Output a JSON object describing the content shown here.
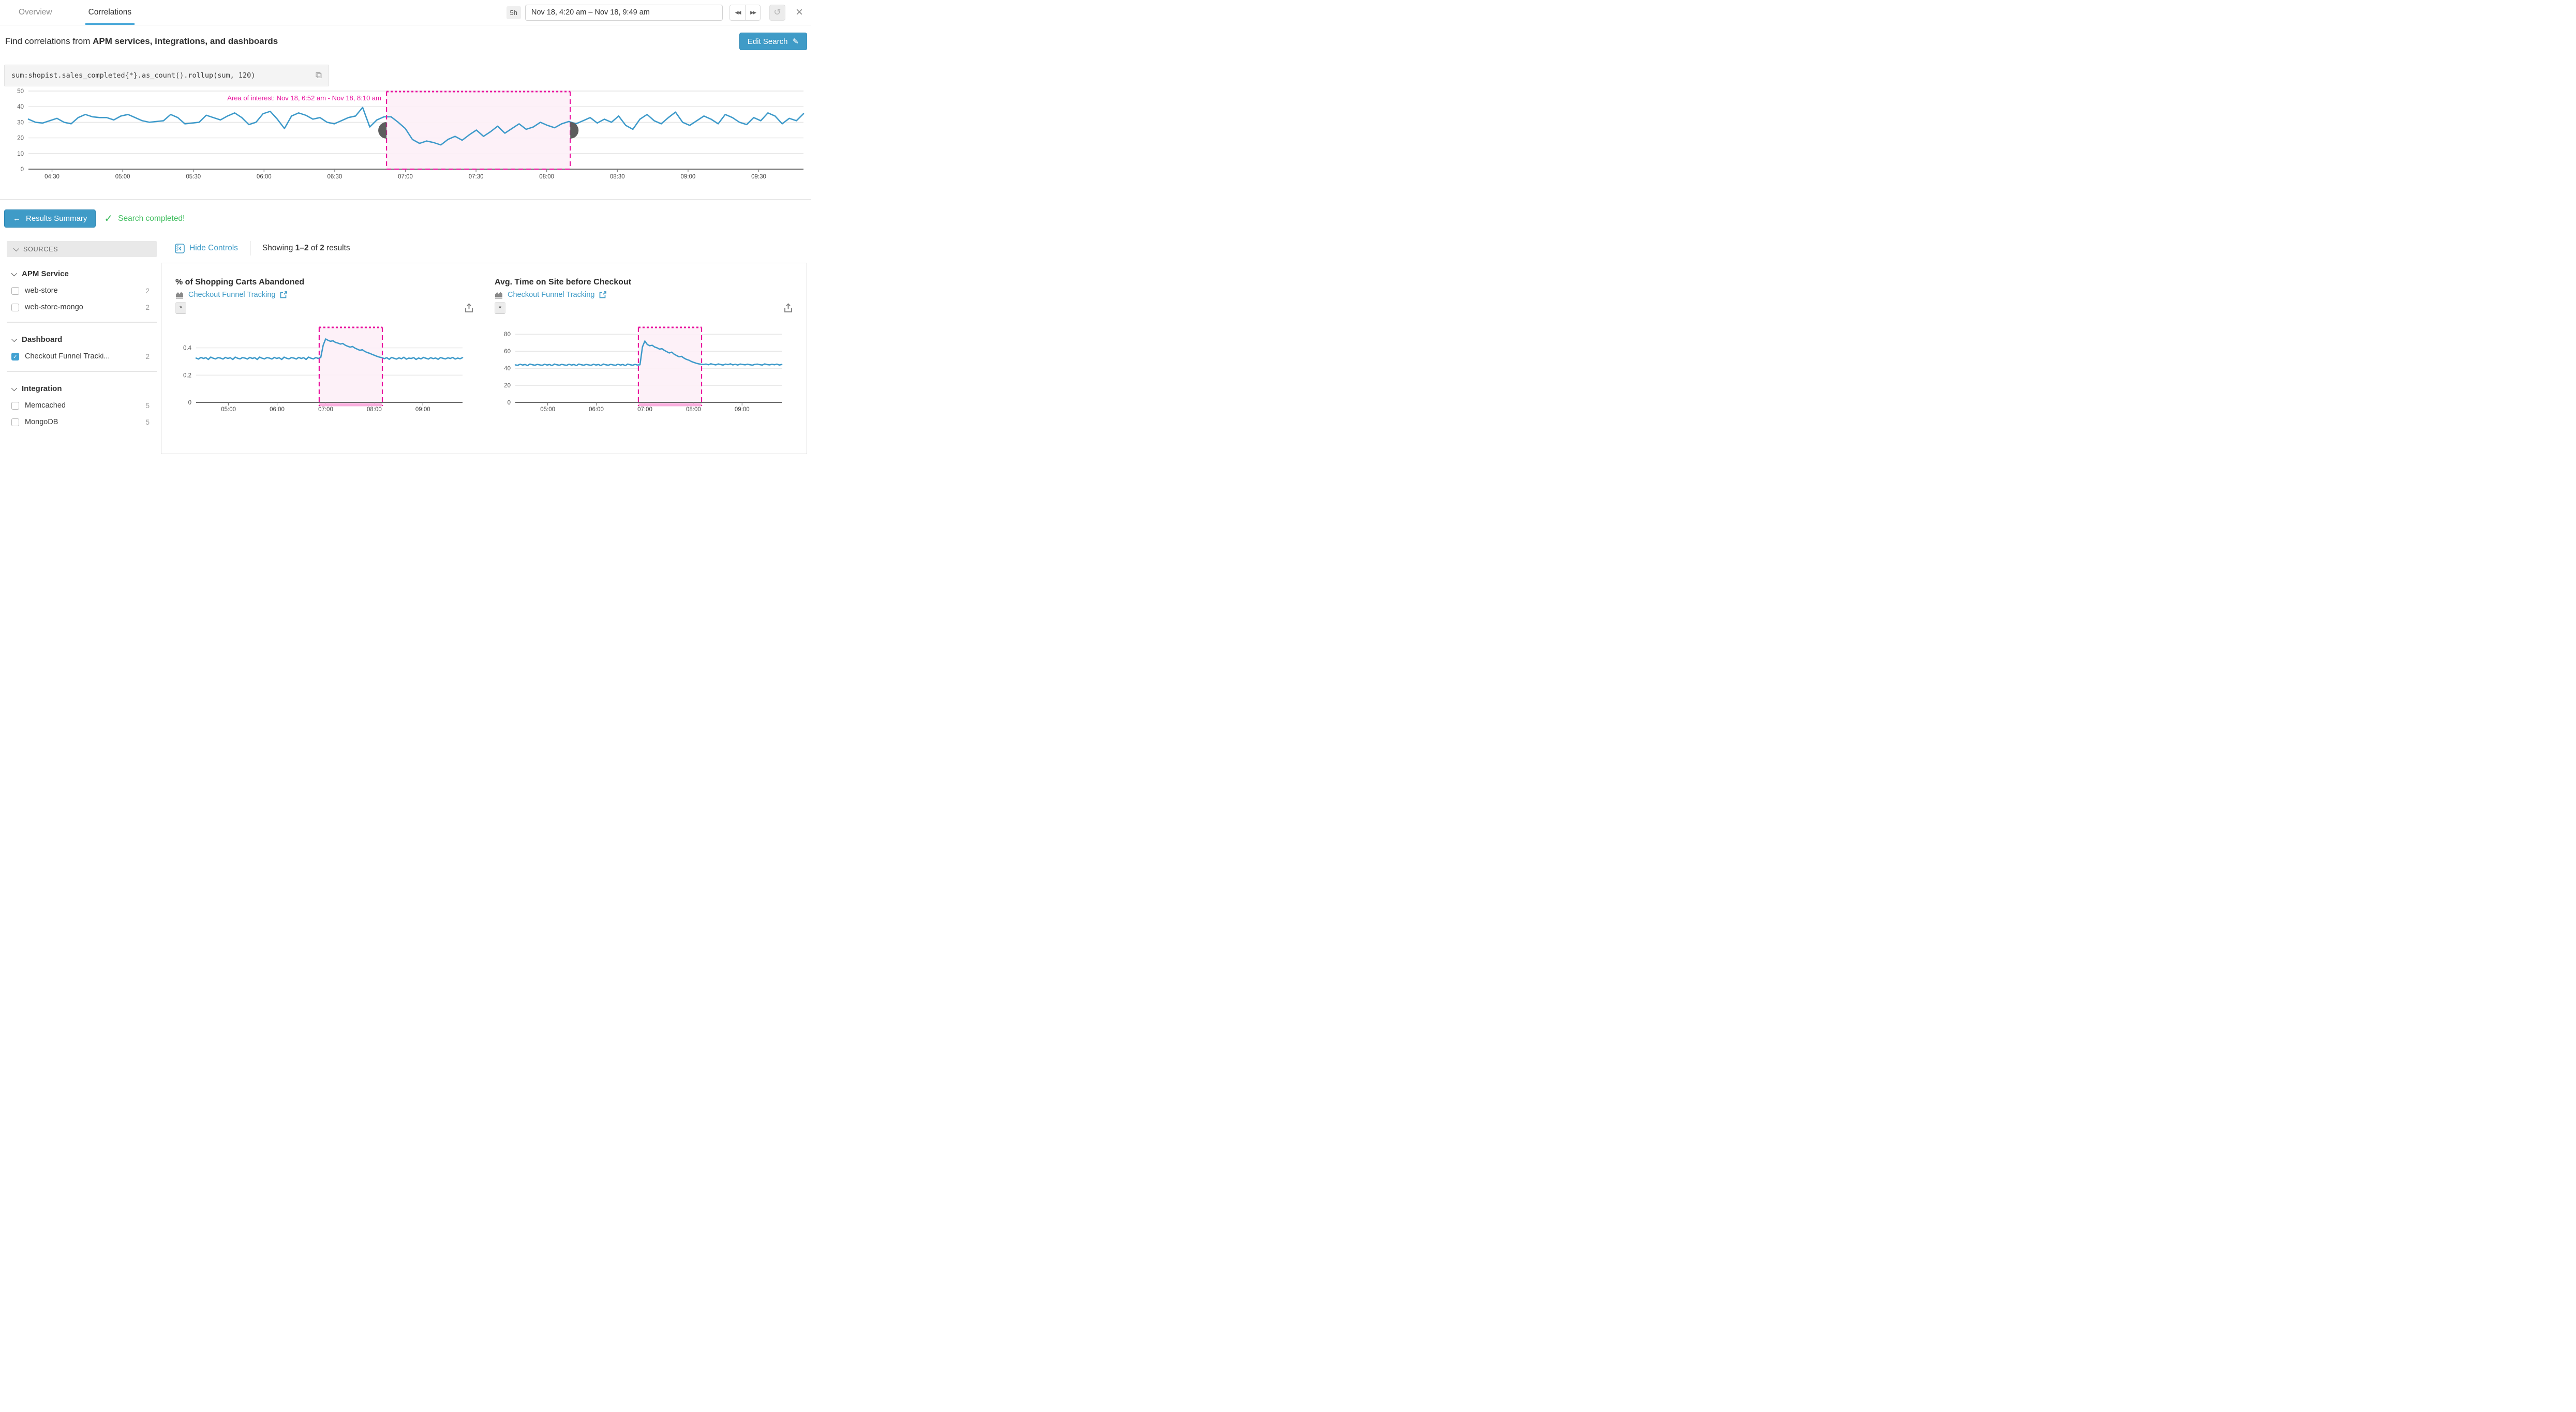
{
  "topbar": {
    "tabs": [
      {
        "label": "Overview"
      },
      {
        "label": "Correlations"
      }
    ],
    "range_badge": "5h",
    "time_range": "Nov 18, 4:20 am – Nov 18, 9:49 am"
  },
  "icons": {
    "nav_back": "◀◀",
    "nav_forward": "▶▶",
    "refresh": "↺",
    "close": "×",
    "edit_pencil": "✎",
    "copy": "⧉",
    "back_arrow": "←",
    "check": "✓"
  },
  "search_header": {
    "prefix": "Find correlations from ",
    "emphasis": "APM services, integrations, and dashboards",
    "edit_button": "Edit Search"
  },
  "query": {
    "text": "sum:shopist.sales_completed{*}.as_count().rollup(sum, 120)"
  },
  "results_bar": {
    "summary_button": "Results Summary",
    "status": "Search completed!"
  },
  "sidebar": {
    "header": "SOURCES",
    "sections": [
      {
        "title": "APM Service",
        "items": [
          {
            "label": "web-store",
            "count": "2",
            "checked": false
          },
          {
            "label": "web-store-mongo",
            "count": "2",
            "checked": false
          }
        ]
      },
      {
        "title": "Dashboard",
        "items": [
          {
            "label": "Checkout Funnel Tracki...",
            "count": "2",
            "checked": true
          }
        ]
      },
      {
        "title": "Integration",
        "items": [
          {
            "label": "Memcached",
            "count": "5",
            "checked": false
          },
          {
            "label": "MongoDB",
            "count": "5",
            "checked": false
          }
        ]
      }
    ]
  },
  "controls_bar": {
    "hide_controls": "Hide Controls",
    "showing_prefix": "Showing ",
    "range": "1–2",
    "of": " of ",
    "total": "2",
    "suffix": " results"
  },
  "cards": [
    {
      "title": "% of Shopping Carts Abandoned",
      "link": "Checkout Funnel Tracking",
      "scope": "*"
    },
    {
      "title": "Avg. Time on Site before Checkout",
      "link": "Checkout Funnel Tracking",
      "scope": "*"
    }
  ],
  "colors": {
    "accent_blue": "#3f9bc7",
    "line_blue": "#3e9aca",
    "magenta": "#e9119e",
    "selection_fill": "#fdf0f7",
    "selection_bar": "#f9aedd",
    "success_green": "#45bf63",
    "gridline": "#e4e4e4",
    "axis": "#3a3a3a",
    "handle_gray": "#5d5d5d"
  },
  "chart_data": [
    {
      "id": "main",
      "type": "line",
      "title": "sum:shopist.sales_completed query timeseries",
      "xlabel": "",
      "ylabel": "",
      "x_range": [
        "04:20",
        "09:49"
      ],
      "total_minutes": 329,
      "ylim": [
        0,
        50
      ],
      "grid": true,
      "legend": "none",
      "yticks": [
        {
          "v": 0,
          "label": "0"
        },
        {
          "v": 10,
          "label": "10"
        },
        {
          "v": 20,
          "label": "20"
        },
        {
          "v": 30,
          "label": "30"
        },
        {
          "v": 40,
          "label": "40"
        },
        {
          "v": 50,
          "label": "50"
        }
      ],
      "xticks": [
        {
          "min": 10,
          "label": "04:30"
        },
        {
          "min": 40,
          "label": "05:00"
        },
        {
          "min": 70,
          "label": "05:30"
        },
        {
          "min": 100,
          "label": "06:00"
        },
        {
          "min": 130,
          "label": "06:30"
        },
        {
          "min": 160,
          "label": "07:00"
        },
        {
          "min": 190,
          "label": "07:30"
        },
        {
          "min": 220,
          "label": "08:00"
        },
        {
          "min": 250,
          "label": "08:30"
        },
        {
          "min": 280,
          "label": "09:00"
        },
        {
          "min": 310,
          "label": "09:30"
        }
      ],
      "selection": {
        "label": "Area of interest: Nov 18, 6:52 am - Nov 18, 8:10 am",
        "start": "Nov 18, 6:52 am",
        "end": "Nov 18, 8:10 am",
        "start_min": 152,
        "end_min": 230
      },
      "values": [
        32,
        30,
        29.5,
        31,
        32.5,
        30,
        29,
        33,
        35,
        33.5,
        33,
        33,
        31.5,
        34,
        35,
        33,
        31,
        30,
        30.5,
        31,
        35,
        33,
        29,
        29.5,
        30,
        34.5,
        33,
        31.5,
        34,
        36,
        33,
        28.5,
        30,
        35.5,
        37,
        32,
        26,
        34,
        36,
        34.5,
        32,
        33,
        30,
        29,
        31,
        33,
        34,
        39.5,
        27,
        31.5,
        33.5,
        33.5,
        30,
        26,
        19,
        16.5,
        18,
        17,
        15.5,
        19,
        21,
        18.5,
        22,
        25,
        21,
        24,
        27.5,
        23,
        26,
        29,
        25.5,
        27,
        30,
        28,
        26.5,
        29,
        30.5,
        29,
        31,
        33,
        29.5,
        32,
        30,
        34,
        28,
        25.5,
        32,
        35,
        31,
        29,
        33,
        36.5,
        30,
        28,
        31,
        34,
        32,
        29,
        35,
        33,
        30,
        28.5,
        33,
        31,
        36,
        34,
        29,
        32.5,
        31,
        35.5
      ]
    },
    {
      "id": "carts",
      "type": "line",
      "title": "% of Shopping Carts Abandoned",
      "xlabel": "",
      "ylabel": "",
      "x_range": [
        "04:20",
        "09:49"
      ],
      "total_minutes": 329,
      "ylim": [
        0,
        0.55
      ],
      "grid": true,
      "legend": "none",
      "yticks": [
        {
          "v": 0,
          "label": "0"
        },
        {
          "v": 0.2,
          "label": "0.2"
        },
        {
          "v": 0.4,
          "label": "0.4"
        }
      ],
      "xticks": [
        {
          "min": 40,
          "label": "05:00"
        },
        {
          "min": 100,
          "label": "06:00"
        },
        {
          "min": 160,
          "label": "07:00"
        },
        {
          "min": 220,
          "label": "08:00"
        },
        {
          "min": 280,
          "label": "09:00"
        }
      ],
      "selection": {
        "label": "",
        "start": "Nov 18, 6:52 am",
        "end": "Nov 18, 8:10 am",
        "start_min": 152,
        "end_min": 230
      },
      "values": [
        0.325,
        0.318,
        0.33,
        0.322,
        0.328,
        0.315,
        0.332,
        0.324,
        0.319,
        0.329,
        0.325,
        0.318,
        0.33,
        0.322,
        0.328,
        0.315,
        0.332,
        0.324,
        0.319,
        0.329,
        0.325,
        0.318,
        0.33,
        0.322,
        0.328,
        0.315,
        0.332,
        0.324,
        0.319,
        0.329,
        0.325,
        0.318,
        0.33,
        0.322,
        0.328,
        0.315,
        0.332,
        0.324,
        0.319,
        0.329,
        0.325,
        0.318,
        0.33,
        0.322,
        0.328,
        0.315,
        0.332,
        0.324,
        0.319,
        0.329,
        0.322,
        0.33,
        0.42,
        0.465,
        0.455,
        0.448,
        0.452,
        0.44,
        0.435,
        0.428,
        0.432,
        0.42,
        0.412,
        0.405,
        0.41,
        0.398,
        0.39,
        0.382,
        0.386,
        0.374,
        0.366,
        0.36,
        0.352,
        0.345,
        0.338,
        0.332,
        0.328,
        0.321,
        0.328,
        0.316,
        0.33,
        0.323,
        0.318,
        0.327,
        0.32,
        0.331,
        0.317,
        0.325,
        0.322,
        0.329,
        0.315,
        0.326,
        0.319,
        0.33,
        0.324,
        0.318,
        0.328,
        0.321,
        0.326,
        0.316,
        0.329,
        0.323,
        0.319,
        0.327,
        0.322,
        0.33,
        0.318,
        0.325,
        0.32,
        0.328
      ]
    },
    {
      "id": "time-on-site",
      "type": "line",
      "title": "Avg. Time on Site before Checkout",
      "xlabel": "",
      "ylabel": "",
      "x_range": [
        "04:20",
        "09:49"
      ],
      "total_minutes": 329,
      "ylim": [
        0,
        88
      ],
      "grid": true,
      "legend": "none",
      "yticks": [
        {
          "v": 0,
          "label": "0"
        },
        {
          "v": 20,
          "label": "20"
        },
        {
          "v": 40,
          "label": "40"
        },
        {
          "v": 60,
          "label": "60"
        },
        {
          "v": 80,
          "label": "80"
        }
      ],
      "xticks": [
        {
          "min": 40,
          "label": "05:00"
        },
        {
          "min": 100,
          "label": "06:00"
        },
        {
          "min": 160,
          "label": "07:00"
        },
        {
          "min": 220,
          "label": "08:00"
        },
        {
          "min": 280,
          "label": "09:00"
        }
      ],
      "selection": {
        "label": "",
        "start": "Nov 18, 6:52 am",
        "end": "Nov 18, 8:10 am",
        "start_min": 152,
        "end_min": 230
      },
      "values": [
        44,
        43.5,
        44.8,
        43.8,
        44.5,
        43.2,
        45,
        44.2,
        43.6,
        44.6,
        44,
        43.5,
        44.8,
        43.8,
        44.5,
        43.2,
        45,
        44.2,
        43.6,
        44.6,
        44,
        43.5,
        44.8,
        43.8,
        44.5,
        43.2,
        45,
        44.2,
        43.6,
        44.6,
        44,
        43.5,
        44.8,
        43.8,
        44.5,
        43.2,
        45,
        44.2,
        43.6,
        44.6,
        44,
        43.5,
        44.8,
        43.8,
        44.5,
        43.2,
        45,
        44.2,
        43.6,
        44.6,
        43.8,
        44.2,
        65,
        72,
        68,
        66.5,
        67,
        65,
        64,
        62.5,
        63,
        61,
        59.5,
        58,
        59,
        56.5,
        55,
        53.5,
        54,
        52,
        50.5,
        49.5,
        48,
        47,
        46,
        45.2,
        44.8,
        44.5,
        45,
        44.2,
        45.3,
        44.6,
        44,
        45.1,
        44.4,
        43.8,
        44.9,
        44.3,
        45.2,
        44,
        44.7,
        43.9,
        45,
        44.5,
        44.1,
        44.8,
        44.2,
        43.7,
        44.6,
        44.9,
        44.3,
        43.8,
        45.1,
        44.4,
        44,
        44.7,
        44.2,
        44.9,
        43.9,
        44.5
      ]
    }
  ]
}
